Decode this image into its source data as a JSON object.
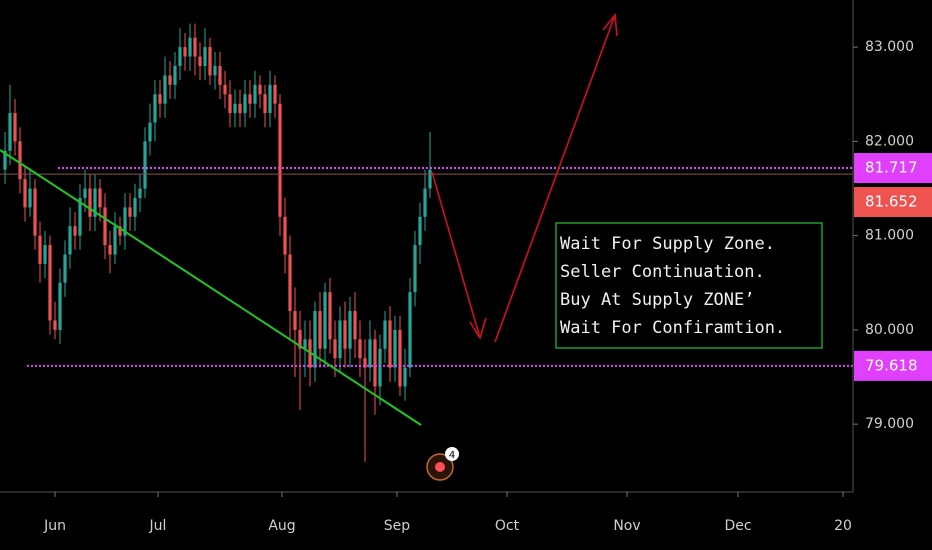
{
  "chart_data": {
    "type": "candlestick",
    "x": [
      1,
      2,
      3,
      4,
      5,
      6,
      7,
      8,
      9,
      10,
      11,
      12,
      13,
      14,
      15,
      16,
      17,
      18,
      19,
      20,
      21,
      22,
      23,
      24,
      25,
      26,
      27,
      28,
      29,
      30,
      31,
      32,
      33,
      34,
      35,
      36,
      37,
      38,
      39,
      40,
      41,
      42,
      43,
      44,
      45,
      46,
      47,
      48,
      49,
      50,
      51,
      52,
      53,
      54,
      55,
      56,
      57,
      58,
      59,
      60,
      61,
      62,
      63,
      64,
      65,
      66,
      67,
      68,
      69,
      70,
      71,
      72,
      73,
      74,
      75,
      76,
      77,
      78,
      79,
      80,
      81,
      82,
      83,
      84,
      85,
      86
    ],
    "open": [
      81.7,
      81.9,
      82.3,
      82.0,
      81.6,
      81.3,
      81.5,
      81.0,
      80.7,
      80.9,
      80.1,
      80.0,
      80.5,
      80.8,
      81.1,
      81.0,
      81.4,
      81.5,
      81.2,
      81.5,
      81.3,
      80.9,
      80.8,
      81.1,
      81.0,
      81.3,
      81.2,
      81.4,
      81.5,
      82.0,
      82.2,
      82.5,
      82.4,
      82.7,
      82.6,
      82.8,
      83.0,
      82.9,
      83.1,
      82.9,
      82.8,
      83.0,
      82.7,
      82.8,
      82.6,
      82.5,
      82.3,
      82.4,
      82.3,
      82.5,
      82.4,
      82.6,
      82.5,
      82.3,
      82.6,
      82.4,
      81.2,
      80.8,
      80.2,
      80.0,
      79.8,
      79.9,
      79.6,
      80.2,
      79.8,
      80.4,
      79.9,
      79.7,
      80.1,
      79.8,
      80.2,
      79.9,
      79.7,
      79.6,
      79.9,
      79.4,
      79.8,
      80.1,
      79.6,
      80.0,
      79.4,
      79.6,
      80.4,
      80.9,
      81.2,
      81.5
    ],
    "high": [
      82.1,
      82.6,
      82.45,
      82.15,
      81.75,
      81.7,
      81.6,
      81.15,
      81.05,
      81.0,
      80.3,
      80.65,
      80.95,
      81.3,
      81.25,
      81.55,
      81.7,
      81.65,
      81.65,
      81.6,
      81.45,
      81.05,
      81.25,
      81.2,
      81.45,
      81.45,
      81.55,
      81.65,
      82.15,
      82.4,
      82.65,
      82.65,
      82.9,
      82.85,
      82.95,
      83.2,
      83.15,
      83.25,
      83.25,
      83.05,
      83.2,
      83.1,
      82.95,
      82.95,
      82.75,
      82.65,
      82.55,
      82.55,
      82.65,
      82.65,
      82.75,
      82.7,
      82.6,
      82.75,
      82.7,
      82.5,
      81.4,
      81.0,
      80.45,
      80.2,
      80.1,
      80.1,
      80.3,
      80.4,
      80.5,
      80.55,
      80.1,
      80.25,
      80.3,
      80.35,
      80.4,
      80.1,
      79.9,
      80.1,
      80.0,
      79.95,
      80.2,
      80.25,
      80.15,
      80.15,
      79.8,
      80.55,
      81.05,
      81.35,
      81.7,
      82.1
    ],
    "low": [
      81.55,
      81.75,
      81.85,
      81.45,
      81.15,
      81.2,
      80.85,
      80.5,
      80.55,
      79.95,
      79.9,
      79.85,
      80.35,
      80.65,
      80.85,
      80.85,
      81.25,
      81.05,
      81.05,
      81.15,
      80.75,
      80.6,
      80.7,
      80.9,
      80.85,
      81.05,
      81.05,
      81.25,
      81.4,
      81.85,
      82.0,
      82.25,
      82.25,
      82.45,
      82.45,
      82.65,
      82.75,
      82.75,
      82.7,
      82.65,
      82.65,
      82.6,
      82.55,
      82.45,
      82.35,
      82.15,
      82.15,
      82.15,
      82.15,
      82.25,
      82.25,
      82.35,
      82.15,
      82.15,
      82.25,
      81.0,
      80.6,
      79.9,
      79.5,
      79.15,
      79.5,
      79.4,
      79.45,
      79.6,
      79.6,
      79.75,
      79.5,
      79.55,
      79.6,
      79.6,
      79.7,
      79.5,
      78.6,
      79.45,
      79.1,
      79.2,
      79.65,
      79.45,
      79.45,
      79.3,
      79.25,
      79.5,
      80.25,
      80.7,
      81.05,
      81.4
    ],
    "close": [
      81.9,
      82.3,
      82.0,
      81.6,
      81.3,
      81.5,
      81.0,
      80.7,
      80.9,
      80.1,
      80.0,
      80.5,
      80.8,
      81.1,
      81.0,
      81.4,
      81.5,
      81.2,
      81.5,
      81.3,
      80.9,
      80.8,
      81.1,
      81.0,
      81.3,
      81.2,
      81.4,
      81.5,
      82.0,
      82.2,
      82.5,
      82.4,
      82.7,
      82.6,
      82.8,
      83.0,
      82.9,
      83.1,
      82.9,
      82.8,
      83.0,
      82.7,
      82.8,
      82.6,
      82.5,
      82.3,
      82.4,
      82.3,
      82.5,
      82.4,
      82.6,
      82.5,
      82.3,
      82.6,
      82.4,
      81.2,
      80.8,
      80.2,
      80.0,
      79.8,
      79.9,
      79.6,
      80.2,
      79.8,
      80.4,
      79.9,
      79.7,
      80.1,
      79.8,
      80.2,
      79.9,
      79.7,
      79.6,
      79.9,
      79.4,
      79.8,
      80.1,
      79.6,
      80.0,
      79.4,
      79.6,
      80.4,
      80.9,
      81.2,
      81.5,
      81.7
    ],
    "up_color": "#26a69a",
    "down_color": "#ef5350",
    "xlim": [
      0,
      170.6
    ],
    "xticks": [
      {
        "value": 11,
        "label": "Jun"
      },
      {
        "value": 31.6,
        "label": "Jul"
      },
      {
        "value": 56.4,
        "label": "Aug"
      },
      {
        "value": 79.4,
        "label": "Sep"
      },
      {
        "value": 101.4,
        "label": "Oct"
      },
      {
        "value": 125.4,
        "label": "Nov"
      },
      {
        "value": 147.6,
        "label": "Dec"
      },
      {
        "value": 168.6,
        "label": "20"
      }
    ],
    "ylim": [
      78.28,
      83.5
    ],
    "yticks": [
      {
        "value": 79,
        "label": "79.000"
      },
      {
        "value": 80,
        "label": "80.000"
      },
      {
        "value": 81,
        "label": "81.000"
      },
      {
        "value": 82,
        "label": "82.000"
      },
      {
        "value": 83,
        "label": "83.000"
      }
    ],
    "levels": [
      {
        "value": 81.717,
        "color": "#e040fb",
        "dotted": true
      },
      {
        "value": 81.652,
        "color": "#ef5350",
        "dotted": false
      },
      {
        "value": 79.618,
        "color": "#e040fb",
        "dotted": true
      }
    ],
    "annotation": [
      "Wait For Supply Zone.",
      "Seller Continuation.",
      "Buy At Supply ZONE’",
      "Wait For Confiramtion."
    ],
    "badge": "4"
  }
}
